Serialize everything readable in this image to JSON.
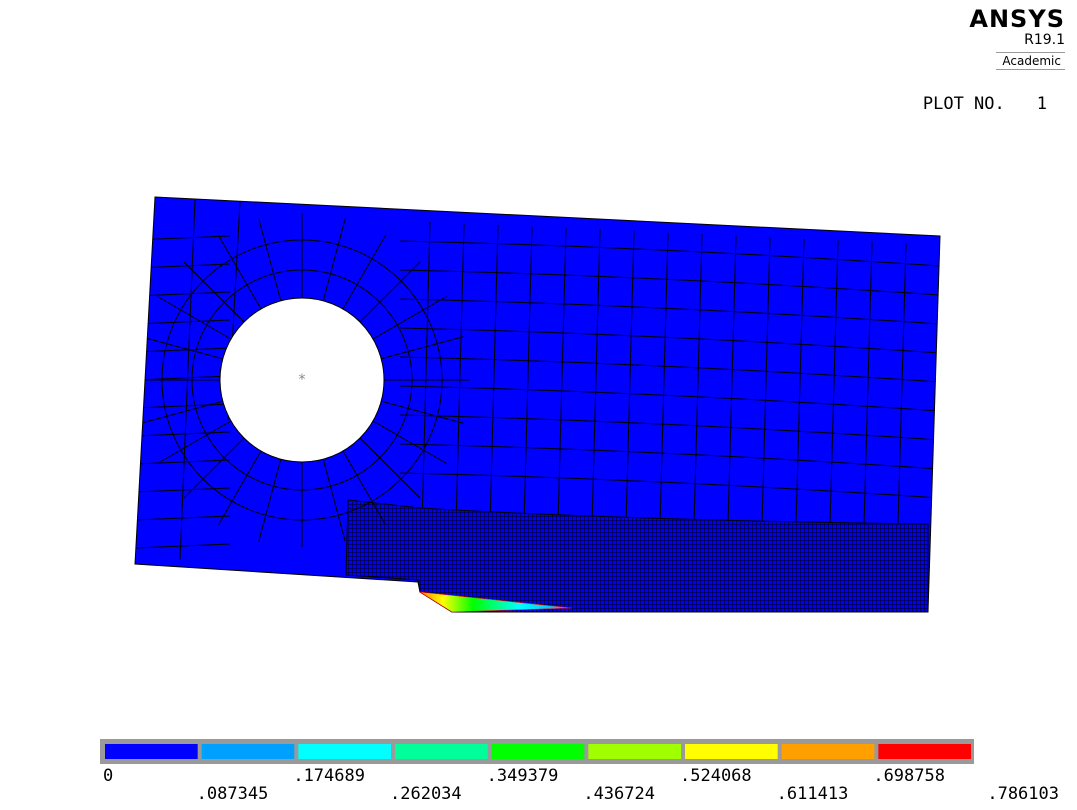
{
  "brand": {
    "name": "ANSYS",
    "version": "R19.1",
    "edition": "Academic"
  },
  "plot": {
    "label": "PLOT NO.",
    "number": "1"
  },
  "legend": {
    "colors": [
      "#0000ff",
      "#00a0ff",
      "#00ffff",
      "#00ff9a",
      "#00ff00",
      "#a0ff00",
      "#ffff00",
      "#ffa000",
      "#ff0000"
    ],
    "labels": [
      "0",
      ".087345",
      ".174689",
      ".262034",
      ".349379",
      ".436724",
      ".524068",
      ".611413",
      ".698758",
      ".786103"
    ]
  },
  "model": {
    "body_color": "#0000ff",
    "mesh_color": "#000000",
    "hole_marker": "*"
  }
}
